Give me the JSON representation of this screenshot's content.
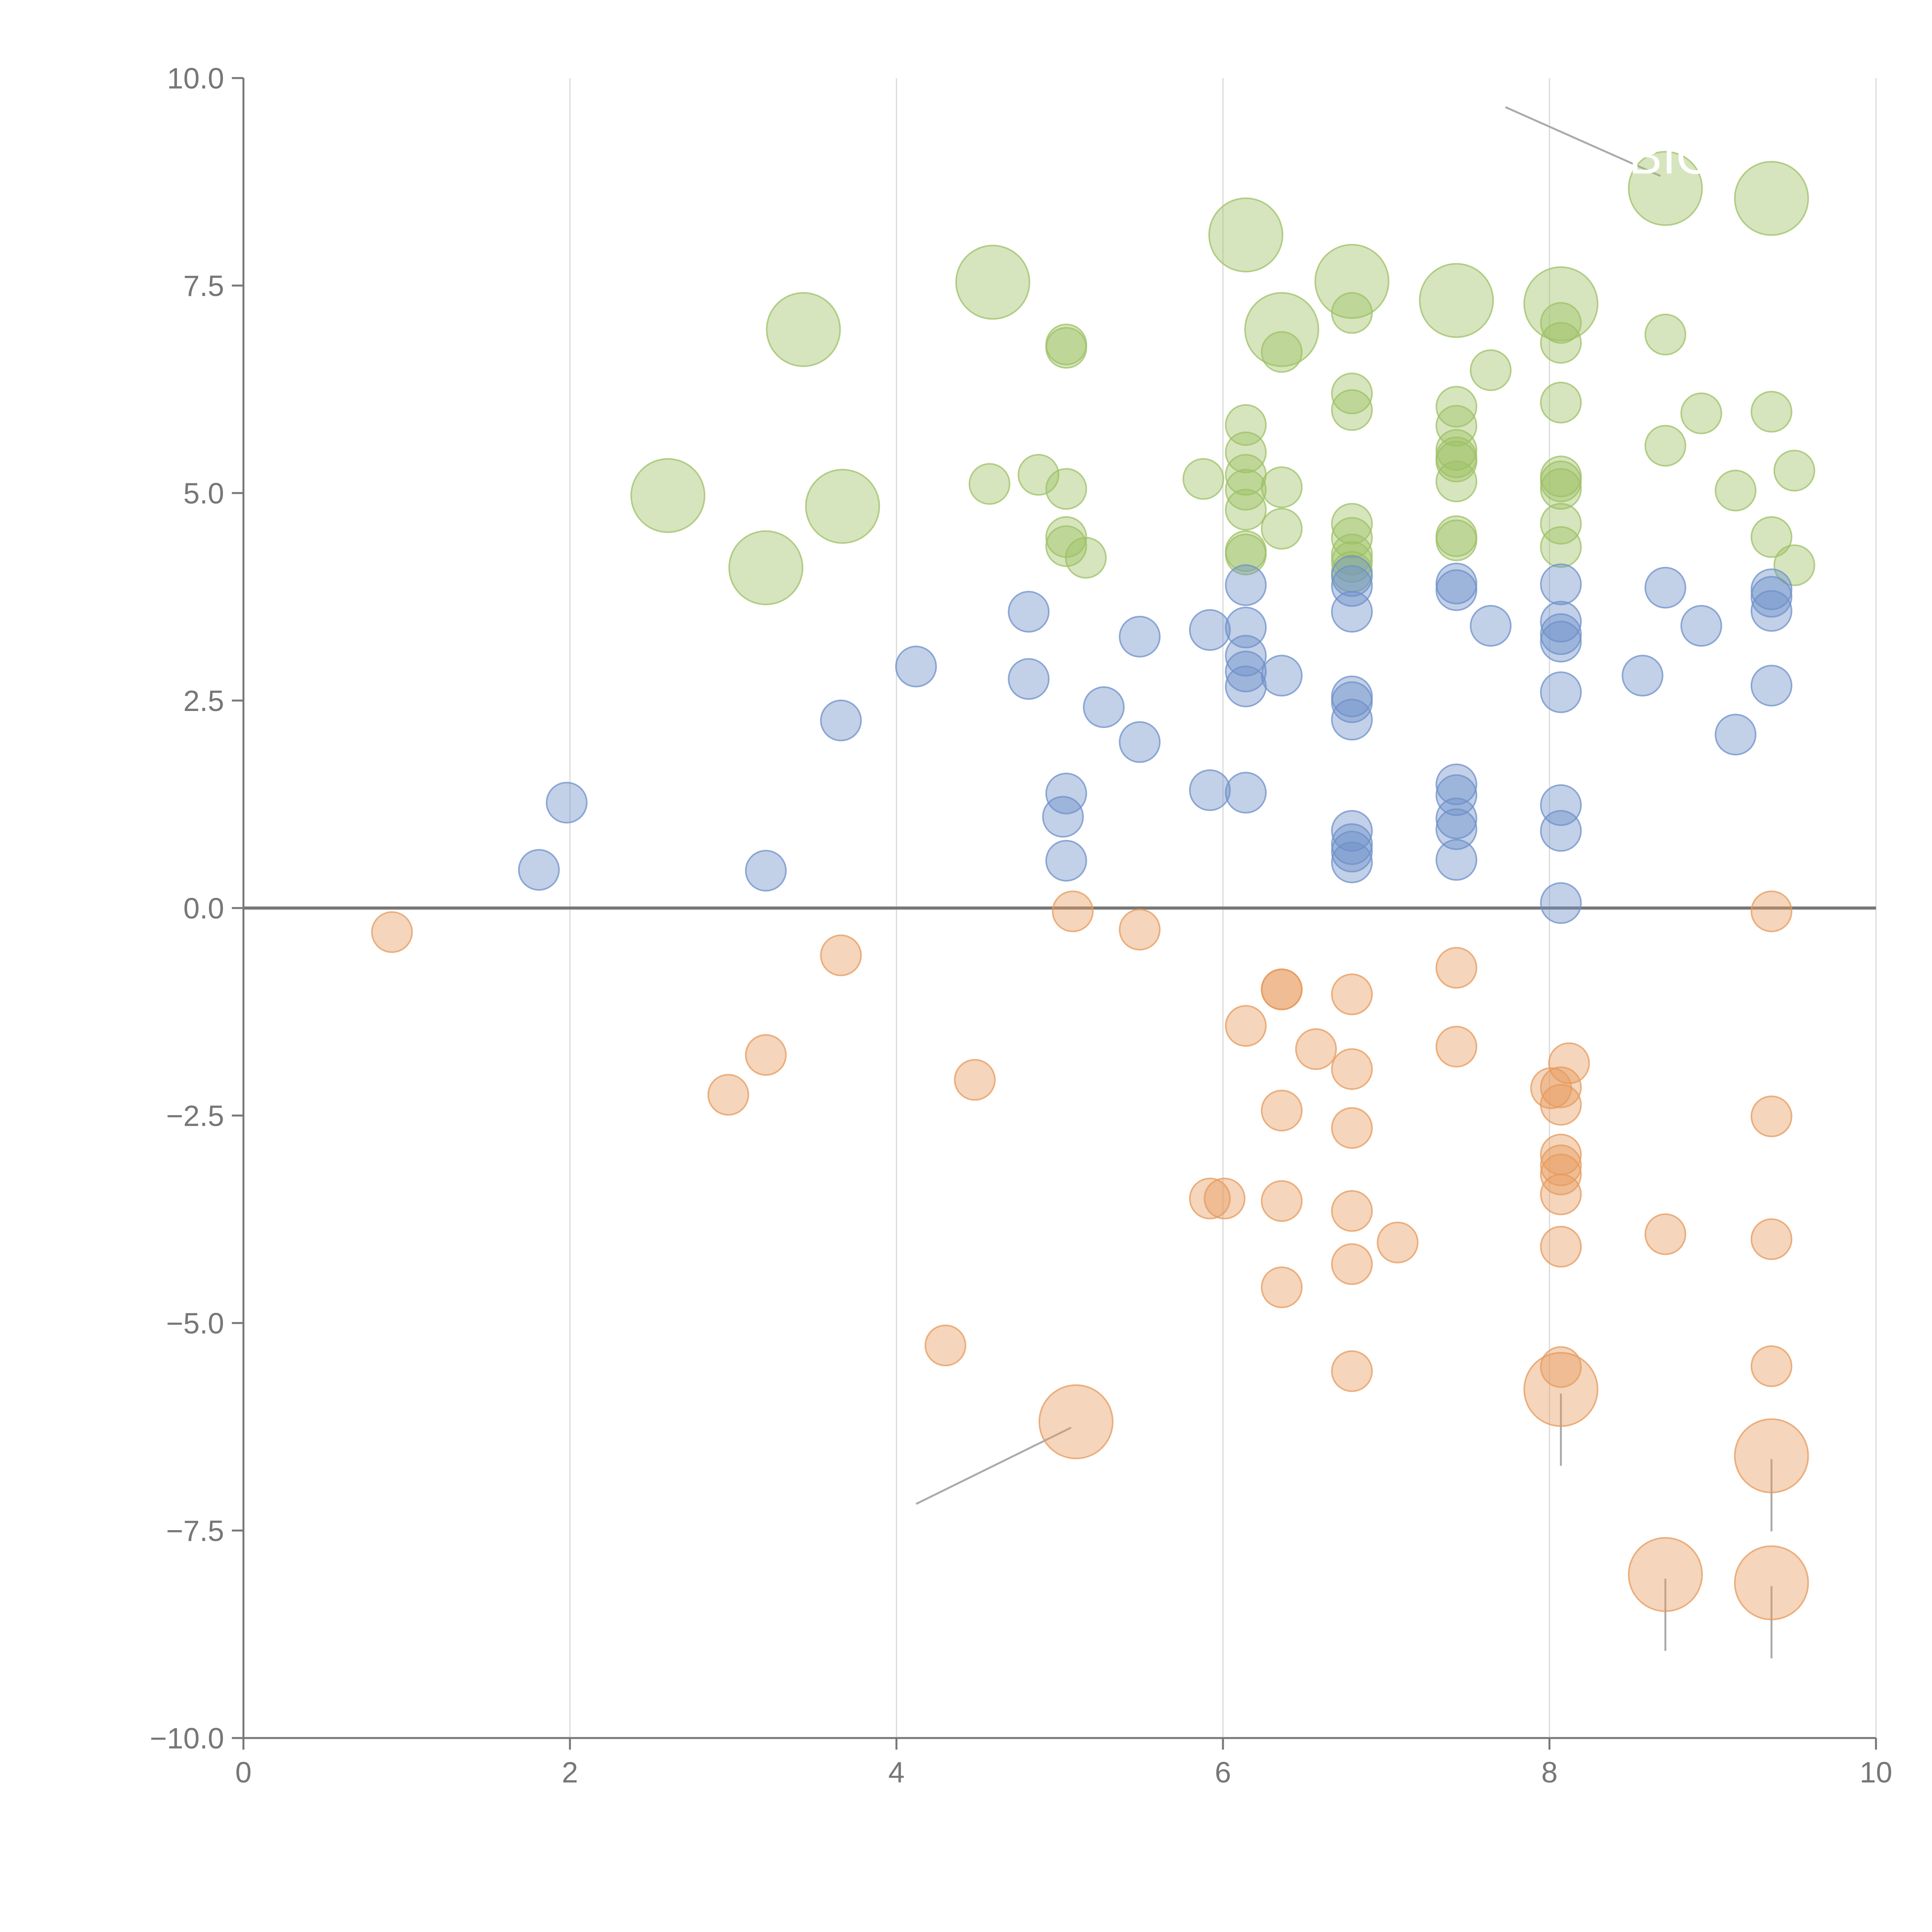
{
  "chart_data": {
    "type": "scatter",
    "title": "",
    "xlabel": "",
    "ylabel": "",
    "xlim": [
      0,
      10
    ],
    "ylim": [
      -10,
      10
    ],
    "x_ticks": [
      "0",
      "2",
      "4",
      "6",
      "8",
      "10"
    ],
    "y_ticks": [
      "10.0",
      "7.5",
      "5.0",
      "2.5",
      "0.0",
      "−2.5",
      "−5.0",
      "−7.5",
      "−10.0"
    ],
    "x_grid": true,
    "y_grid": false,
    "zero_line": true,
    "colors": {
      "green": "#9dc065",
      "blue": "#6d90c9",
      "orange": "#e69a5c",
      "axis": "#777777",
      "grid": "#d9d9d9",
      "zero": "#777777",
      "leader": "#aaaaaa"
    },
    "series": [
      {
        "name": "green",
        "color": "#9dc065",
        "points": [
          {
            "x": 2.6,
            "y": 4.97,
            "r": 2
          },
          {
            "x": 3.2,
            "y": 4.1,
            "r": 2
          },
          {
            "x": 3.43,
            "y": 6.97,
            "r": 2
          },
          {
            "x": 3.67,
            "y": 4.84,
            "r": 2
          },
          {
            "x": 4.57,
            "y": 5.11,
            "r": 1
          },
          {
            "x": 4.59,
            "y": 7.54,
            "r": 2
          },
          {
            "x": 4.87,
            "y": 5.22,
            "r": 1
          },
          {
            "x": 5.04,
            "y": 6.79,
            "r": 1
          },
          {
            "x": 5.04,
            "y": 6.75,
            "r": 1
          },
          {
            "x": 5.04,
            "y": 5.05,
            "r": 1
          },
          {
            "x": 5.04,
            "y": 4.47,
            "r": 1
          },
          {
            "x": 5.04,
            "y": 4.36,
            "r": 1
          },
          {
            "x": 5.16,
            "y": 4.22,
            "r": 1
          },
          {
            "x": 5.88,
            "y": 5.17,
            "r": 1
          },
          {
            "x": 6.14,
            "y": 8.11,
            "r": 2
          },
          {
            "x": 6.14,
            "y": 5.82,
            "r": 1
          },
          {
            "x": 6.14,
            "y": 5.49,
            "r": 1
          },
          {
            "x": 6.14,
            "y": 5.22,
            "r": 1
          },
          {
            "x": 6.14,
            "y": 5.04,
            "r": 1
          },
          {
            "x": 6.14,
            "y": 4.8,
            "r": 1
          },
          {
            "x": 6.14,
            "y": 4.3,
            "r": 1
          },
          {
            "x": 6.14,
            "y": 4.26,
            "r": 1
          },
          {
            "x": 6.36,
            "y": 6.97,
            "r": 2
          },
          {
            "x": 6.36,
            "y": 6.7,
            "r": 1
          },
          {
            "x": 6.36,
            "y": 5.07,
            "r": 1
          },
          {
            "x": 6.36,
            "y": 4.57,
            "r": 1
          },
          {
            "x": 6.79,
            "y": 7.55,
            "r": 2
          },
          {
            "x": 6.79,
            "y": 7.17,
            "r": 1
          },
          {
            "x": 6.79,
            "y": 6.2,
            "r": 1
          },
          {
            "x": 6.79,
            "y": 6.0,
            "r": 1
          },
          {
            "x": 6.79,
            "y": 4.63,
            "r": 1
          },
          {
            "x": 6.79,
            "y": 4.46,
            "r": 1
          },
          {
            "x": 6.79,
            "y": 4.26,
            "r": 1
          },
          {
            "x": 6.79,
            "y": 4.17,
            "r": 1
          },
          {
            "x": 6.79,
            "y": 4.05,
            "r": 1
          },
          {
            "x": 7.43,
            "y": 7.32,
            "r": 2
          },
          {
            "x": 7.43,
            "y": 6.04,
            "r": 1
          },
          {
            "x": 7.43,
            "y": 5.81,
            "r": 1
          },
          {
            "x": 7.43,
            "y": 5.52,
            "r": 1
          },
          {
            "x": 7.43,
            "y": 5.43,
            "r": 1
          },
          {
            "x": 7.43,
            "y": 5.38,
            "r": 1
          },
          {
            "x": 7.43,
            "y": 5.14,
            "r": 1
          },
          {
            "x": 7.43,
            "y": 4.48,
            "r": 1
          },
          {
            "x": 7.43,
            "y": 4.43,
            "r": 1
          },
          {
            "x": 7.64,
            "y": 6.48,
            "r": 1
          },
          {
            "x": 8.07,
            "y": 7.28,
            "r": 2
          },
          {
            "x": 8.07,
            "y": 7.05,
            "r": 1
          },
          {
            "x": 8.07,
            "y": 6.81,
            "r": 1
          },
          {
            "x": 8.07,
            "y": 6.09,
            "r": 1
          },
          {
            "x": 8.07,
            "y": 5.2,
            "r": 1
          },
          {
            "x": 8.07,
            "y": 5.14,
            "r": 1
          },
          {
            "x": 8.07,
            "y": 5.05,
            "r": 1
          },
          {
            "x": 8.07,
            "y": 4.63,
            "r": 1
          },
          {
            "x": 8.07,
            "y": 4.35,
            "r": 1
          },
          {
            "x": 8.71,
            "y": 8.67,
            "r": 2
          },
          {
            "x": 8.71,
            "y": 6.91,
            "r": 1
          },
          {
            "x": 8.71,
            "y": 5.57,
            "r": 1
          },
          {
            "x": 8.93,
            "y": 5.96,
            "r": 1
          },
          {
            "x": 9.14,
            "y": 5.03,
            "r": 1
          },
          {
            "x": 9.36,
            "y": 8.55,
            "r": 2
          },
          {
            "x": 9.36,
            "y": 5.98,
            "r": 1
          },
          {
            "x": 9.36,
            "y": 4.47,
            "r": 1
          },
          {
            "x": 9.5,
            "y": 5.27,
            "r": 1
          },
          {
            "x": 9.5,
            "y": 4.13,
            "r": 1
          }
        ]
      },
      {
        "name": "blue",
        "color": "#6d90c9",
        "points": [
          {
            "x": 1.81,
            "y": 0.46,
            "r": 1
          },
          {
            "x": 1.98,
            "y": 1.27,
            "r": 1
          },
          {
            "x": 3.2,
            "y": 0.45,
            "r": 1
          },
          {
            "x": 3.66,
            "y": 2.26,
            "r": 1
          },
          {
            "x": 4.12,
            "y": 2.91,
            "r": 1
          },
          {
            "x": 4.81,
            "y": 2.76,
            "r": 1
          },
          {
            "x": 4.81,
            "y": 3.57,
            "r": 1
          },
          {
            "x": 5.02,
            "y": 1.1,
            "r": 1
          },
          {
            "x": 5.04,
            "y": 1.38,
            "r": 1
          },
          {
            "x": 5.04,
            "y": 0.57,
            "r": 1
          },
          {
            "x": 5.27,
            "y": 2.42,
            "r": 1
          },
          {
            "x": 5.49,
            "y": 3.27,
            "r": 1
          },
          {
            "x": 5.49,
            "y": 2.0,
            "r": 1
          },
          {
            "x": 5.92,
            "y": 3.35,
            "r": 1
          },
          {
            "x": 5.92,
            "y": 1.42,
            "r": 1
          },
          {
            "x": 6.14,
            "y": 3.89,
            "r": 1
          },
          {
            "x": 6.14,
            "y": 3.38,
            "r": 1
          },
          {
            "x": 6.14,
            "y": 3.04,
            "r": 1
          },
          {
            "x": 6.14,
            "y": 2.85,
            "r": 1
          },
          {
            "x": 6.14,
            "y": 2.67,
            "r": 1
          },
          {
            "x": 6.14,
            "y": 1.39,
            "r": 1
          },
          {
            "x": 6.36,
            "y": 2.8,
            "r": 1
          },
          {
            "x": 6.79,
            "y": 4.0,
            "r": 1
          },
          {
            "x": 6.79,
            "y": 3.88,
            "r": 1
          },
          {
            "x": 6.79,
            "y": 3.57,
            "r": 1
          },
          {
            "x": 6.79,
            "y": 2.55,
            "r": 1
          },
          {
            "x": 6.79,
            "y": 2.48,
            "r": 1
          },
          {
            "x": 6.79,
            "y": 2.27,
            "r": 1
          },
          {
            "x": 6.79,
            "y": 0.93,
            "r": 1
          },
          {
            "x": 6.79,
            "y": 0.77,
            "r": 1
          },
          {
            "x": 6.79,
            "y": 0.68,
            "r": 1
          },
          {
            "x": 6.79,
            "y": 0.55,
            "r": 1
          },
          {
            "x": 7.43,
            "y": 3.91,
            "r": 1
          },
          {
            "x": 7.43,
            "y": 3.83,
            "r": 1
          },
          {
            "x": 7.43,
            "y": 1.49,
            "r": 1
          },
          {
            "x": 7.43,
            "y": 1.36,
            "r": 1
          },
          {
            "x": 7.43,
            "y": 1.08,
            "r": 1
          },
          {
            "x": 7.43,
            "y": 0.95,
            "r": 1
          },
          {
            "x": 7.43,
            "y": 0.58,
            "r": 1
          },
          {
            "x": 7.64,
            "y": 3.4,
            "r": 1
          },
          {
            "x": 8.07,
            "y": 3.9,
            "r": 1
          },
          {
            "x": 8.07,
            "y": 3.45,
            "r": 1
          },
          {
            "x": 8.07,
            "y": 3.3,
            "r": 1
          },
          {
            "x": 8.07,
            "y": 3.21,
            "r": 1
          },
          {
            "x": 8.07,
            "y": 2.6,
            "r": 1
          },
          {
            "x": 8.07,
            "y": 1.24,
            "r": 1
          },
          {
            "x": 8.07,
            "y": 0.93,
            "r": 1
          },
          {
            "x": 8.07,
            "y": 0.06,
            "r": 1
          },
          {
            "x": 8.57,
            "y": 2.8,
            "r": 1
          },
          {
            "x": 8.71,
            "y": 3.86,
            "r": 1
          },
          {
            "x": 8.93,
            "y": 3.4,
            "r": 1
          },
          {
            "x": 9.14,
            "y": 2.09,
            "r": 1
          },
          {
            "x": 9.36,
            "y": 3.84,
            "r": 1
          },
          {
            "x": 9.36,
            "y": 3.75,
            "r": 1
          },
          {
            "x": 9.36,
            "y": 3.58,
            "r": 1
          },
          {
            "x": 9.36,
            "y": 2.68,
            "r": 1
          }
        ]
      },
      {
        "name": "orange",
        "color": "#e69a5c",
        "points": [
          {
            "x": 0.91,
            "y": -0.29,
            "r": 1
          },
          {
            "x": 2.97,
            "y": -2.25,
            "r": 1
          },
          {
            "x": 3.2,
            "y": -1.77,
            "r": 1
          },
          {
            "x": 3.66,
            "y": -0.57,
            "r": 1
          },
          {
            "x": 4.3,
            "y": -5.27,
            "r": 1
          },
          {
            "x": 4.48,
            "y": -2.07,
            "r": 1
          },
          {
            "x": 5.08,
            "y": -0.04,
            "r": 1
          },
          {
            "x": 5.1,
            "y": -6.19,
            "r": 2
          },
          {
            "x": 5.49,
            "y": -0.26,
            "r": 1
          },
          {
            "x": 5.92,
            "y": -3.5,
            "r": 1
          },
          {
            "x": 6.01,
            "y": -3.5,
            "r": 1
          },
          {
            "x": 6.14,
            "y": -1.42,
            "r": 1
          },
          {
            "x": 6.36,
            "y": -0.98,
            "r": 1
          },
          {
            "x": 6.36,
            "y": -0.98,
            "r": 1
          },
          {
            "x": 6.36,
            "y": -2.44,
            "r": 1
          },
          {
            "x": 6.36,
            "y": -3.53,
            "r": 1
          },
          {
            "x": 6.36,
            "y": -4.57,
            "r": 1
          },
          {
            "x": 6.57,
            "y": -1.7,
            "r": 1
          },
          {
            "x": 6.79,
            "y": -1.04,
            "r": 1
          },
          {
            "x": 6.79,
            "y": -1.94,
            "r": 1
          },
          {
            "x": 6.79,
            "y": -2.65,
            "r": 1
          },
          {
            "x": 6.79,
            "y": -3.65,
            "r": 1
          },
          {
            "x": 6.79,
            "y": -4.29,
            "r": 1
          },
          {
            "x": 6.79,
            "y": -5.58,
            "r": 1
          },
          {
            "x": 7.07,
            "y": -4.03,
            "r": 1
          },
          {
            "x": 7.43,
            "y": -0.72,
            "r": 1
          },
          {
            "x": 7.43,
            "y": -1.67,
            "r": 1
          },
          {
            "x": 8.01,
            "y": -2.17,
            "r": 1
          },
          {
            "x": 8.07,
            "y": -2.16,
            "r": 1
          },
          {
            "x": 8.07,
            "y": -2.37,
            "r": 1
          },
          {
            "x": 8.07,
            "y": -2.97,
            "r": 1
          },
          {
            "x": 8.07,
            "y": -3.1,
            "r": 1
          },
          {
            "x": 8.07,
            "y": -3.21,
            "r": 1
          },
          {
            "x": 8.07,
            "y": -3.45,
            "r": 1
          },
          {
            "x": 8.07,
            "y": -4.08,
            "r": 1
          },
          {
            "x": 8.07,
            "y": -5.53,
            "r": 1
          },
          {
            "x": 8.07,
            "y": -5.8,
            "r": 2
          },
          {
            "x": 8.12,
            "y": -1.87,
            "r": 1
          },
          {
            "x": 8.71,
            "y": -3.93,
            "r": 1
          },
          {
            "x": 8.71,
            "y": -8.03,
            "r": 2
          },
          {
            "x": 9.36,
            "y": -0.04,
            "r": 1
          },
          {
            "x": 9.36,
            "y": -2.51,
            "r": 1
          },
          {
            "x": 9.36,
            "y": -3.99,
            "r": 1
          },
          {
            "x": 9.36,
            "y": -5.52,
            "r": 1
          },
          {
            "x": 9.36,
            "y": -6.6,
            "r": 2
          },
          {
            "x": 9.36,
            "y": -8.13,
            "r": 2
          }
        ]
      }
    ],
    "annotations": [
      {
        "text": "BIO",
        "x": 8.75,
        "y": 8.85
      }
    ]
  }
}
